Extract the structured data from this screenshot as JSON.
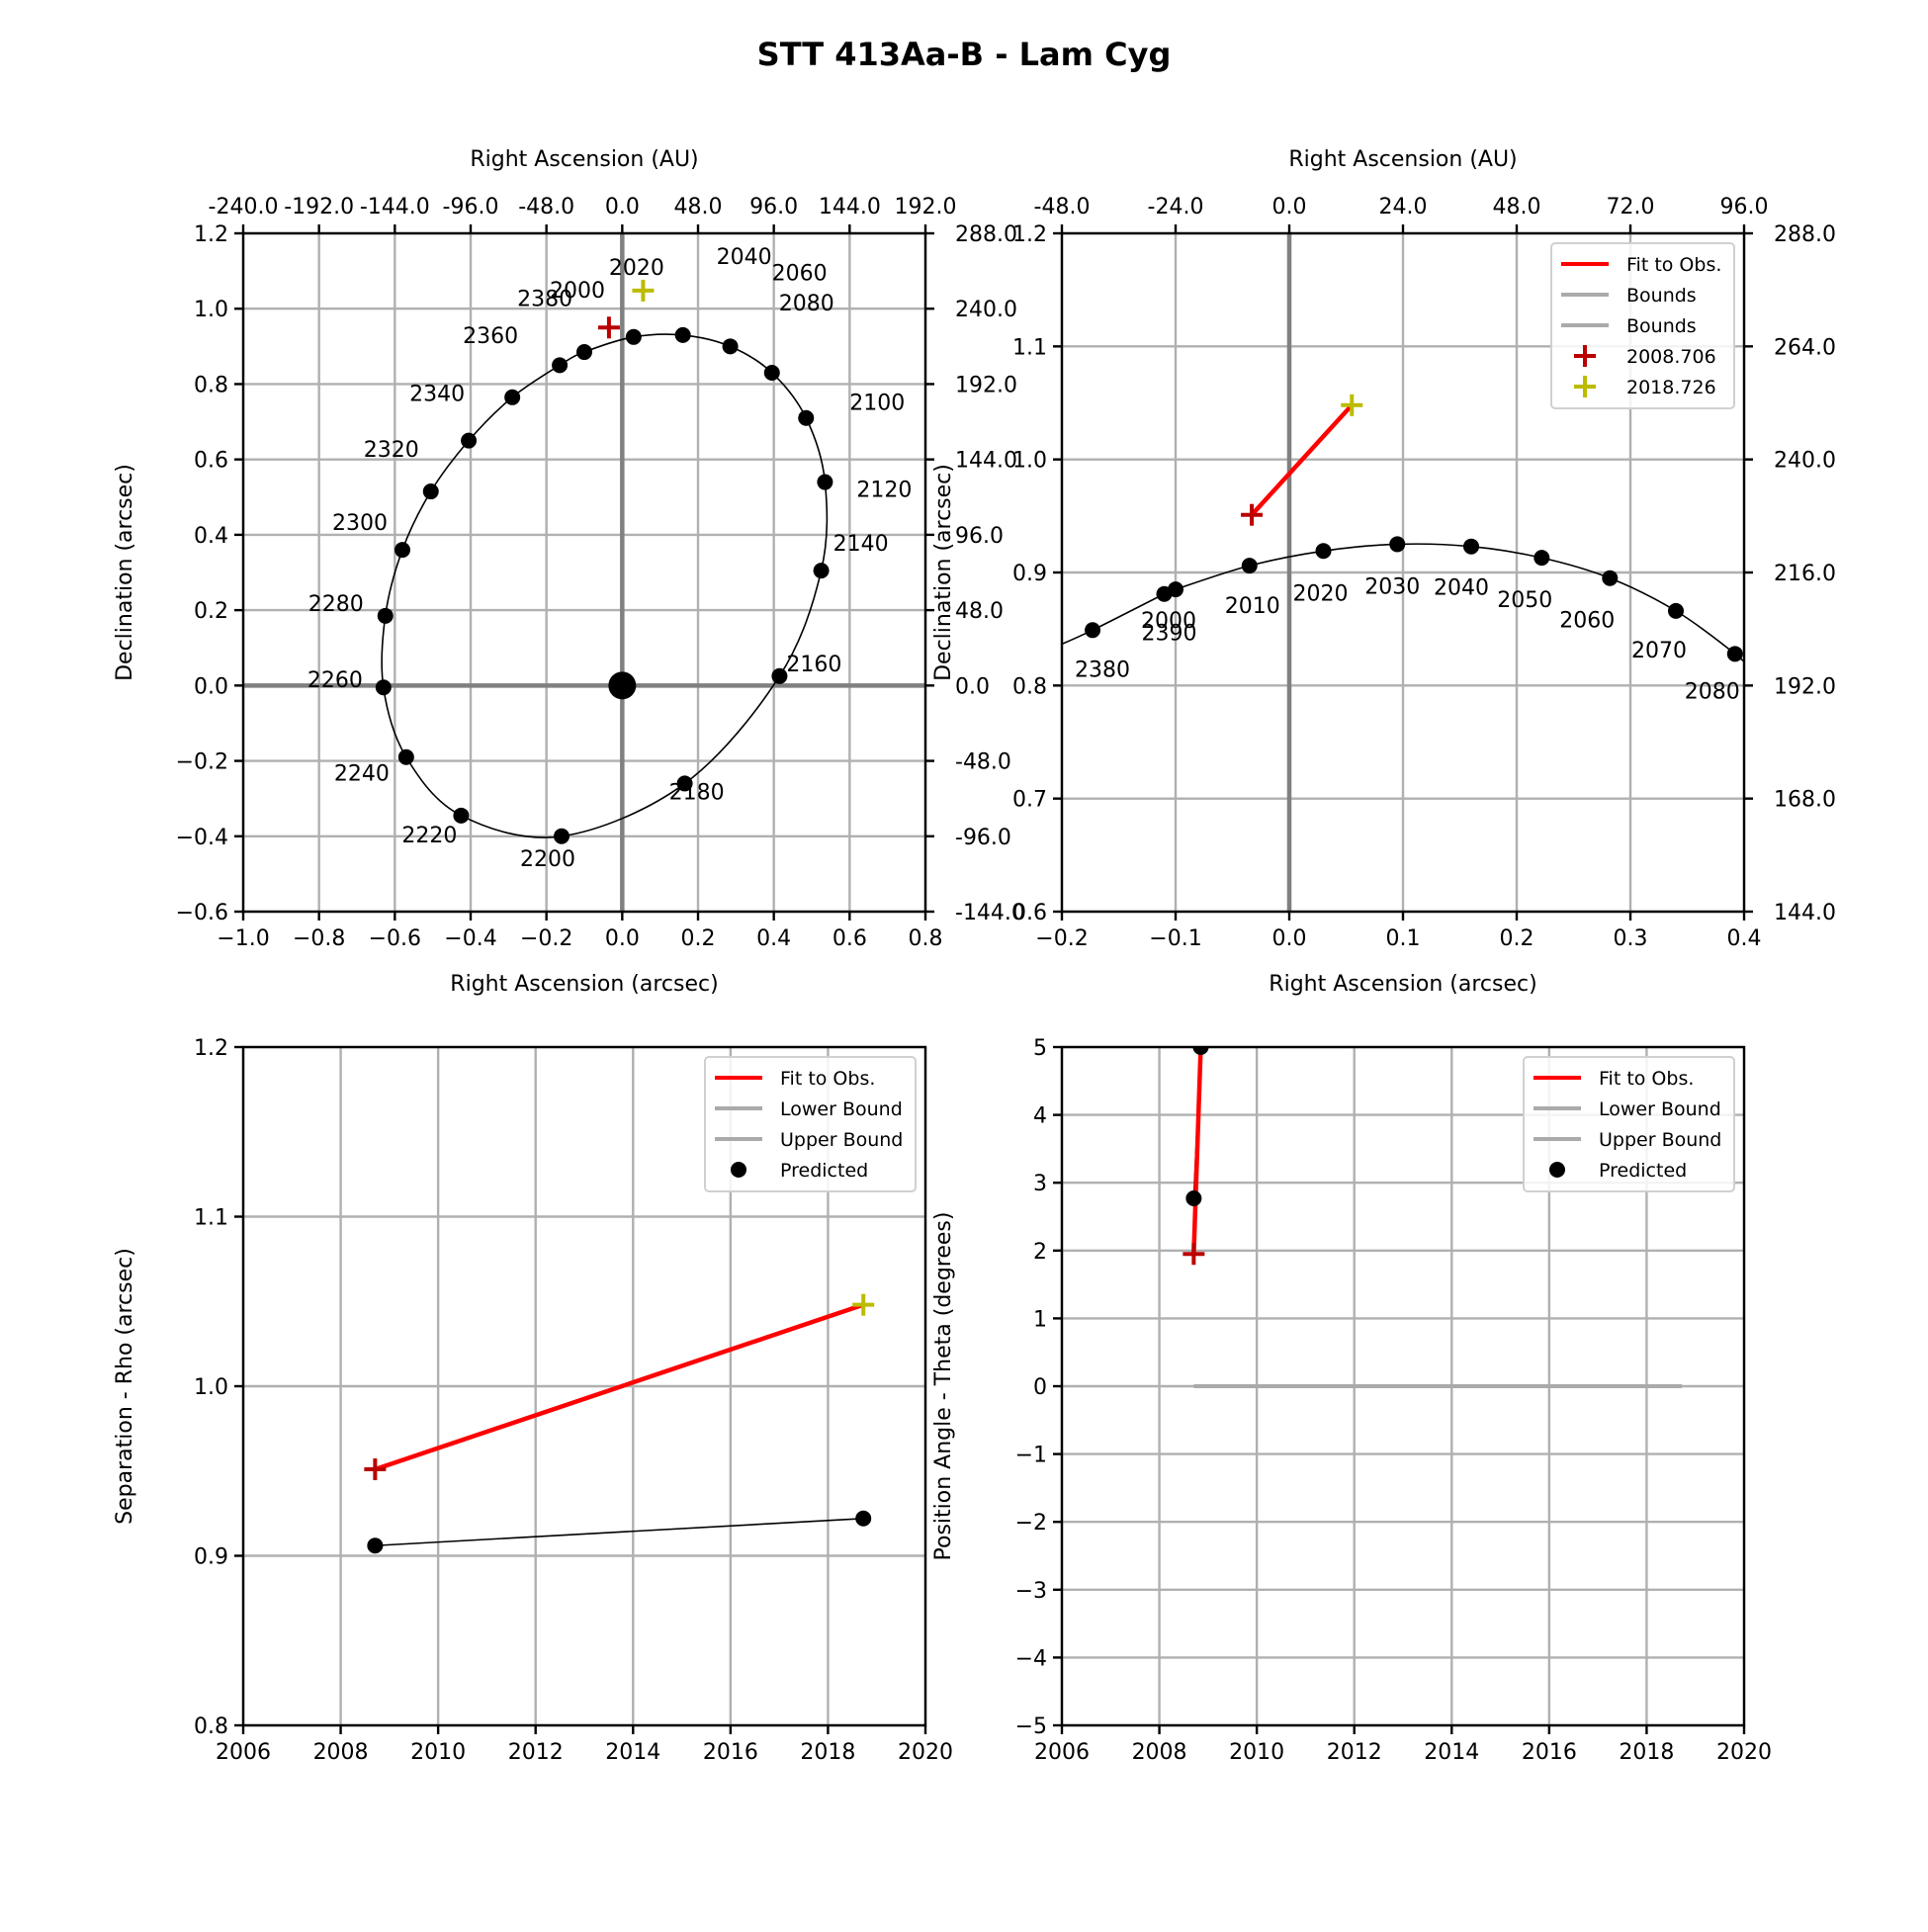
{
  "title": "STT 413Aa-B - Lam Cyg",
  "colors": {
    "fit": "#ff0000",
    "bound": "#aaaaaa",
    "obs1": "#bb0000",
    "obs2": "#bbbb00",
    "predicted": "#000000",
    "grid": "#b0b0b0",
    "axis_zero": "#808080"
  },
  "chart_data": [
    {
      "id": "orbit_full",
      "type": "scatter",
      "xlabel": "Right Ascension (arcsec)",
      "ylabel": "Declination (arcsec)",
      "top_xlabel": "Right Ascension (AU)",
      "xlim": [
        -1.0,
        0.8
      ],
      "ylim": [
        -0.6,
        1.2
      ],
      "xticks": [
        "−1.0",
        "−0.8",
        "−0.6",
        "−0.4",
        "−0.2",
        "0.0",
        "0.2",
        "0.4",
        "0.6",
        "0.8"
      ],
      "yticks": [
        "−0.6",
        "−0.4",
        "−0.2",
        "0.0",
        "0.2",
        "0.4",
        "0.6",
        "0.8",
        "1.0",
        "1.2"
      ],
      "top_ticks": [
        "-240.0",
        "-192.0",
        "-144.0",
        "-96.0",
        "-48.0",
        "0.0",
        "48.0",
        "96.0",
        "144.0",
        "192.0"
      ],
      "right_ticks": [
        "-144.0",
        "-96.0",
        "-48.0",
        "0.0",
        "48.0",
        "96.0",
        "144.0",
        "192.0",
        "240.0",
        "288.0"
      ],
      "grid": true,
      "primary_star": [
        0,
        0
      ],
      "predicted": [
        {
          "label": "2020",
          "x": 0.03,
          "y": 0.925
        },
        {
          "label": "2040",
          "x": 0.16,
          "y": 0.93
        },
        {
          "label": "2060",
          "x": 0.285,
          "y": 0.9
        },
        {
          "label": "2080",
          "x": 0.395,
          "y": 0.83
        },
        {
          "label": "2100",
          "x": 0.485,
          "y": 0.71
        },
        {
          "label": "2120",
          "x": 0.535,
          "y": 0.54
        },
        {
          "label": "2140",
          "x": 0.525,
          "y": 0.305
        },
        {
          "label": "2160",
          "x": 0.415,
          "y": 0.025
        },
        {
          "label": "2180",
          "x": 0.165,
          "y": -0.26
        },
        {
          "label": "2200",
          "x": -0.16,
          "y": -0.4
        },
        {
          "label": "2220",
          "x": -0.425,
          "y": -0.345
        },
        {
          "label": "2240",
          "x": -0.57,
          "y": -0.19
        },
        {
          "label": "2260",
          "x": -0.63,
          "y": -0.005
        },
        {
          "label": "2280",
          "x": -0.625,
          "y": 0.185
        },
        {
          "label": "2300",
          "x": -0.58,
          "y": 0.36
        },
        {
          "label": "2320",
          "x": -0.505,
          "y": 0.515
        },
        {
          "label": "2340",
          "x": -0.405,
          "y": 0.65
        },
        {
          "label": "2360",
          "x": -0.29,
          "y": 0.765
        },
        {
          "label": "2380",
          "x": -0.165,
          "y": 0.85
        },
        {
          "label": "2000",
          "x": -0.1,
          "y": 0.885
        }
      ],
      "observations": [
        {
          "x": -0.035,
          "y": 0.95,
          "color": "#bb0000"
        },
        {
          "x": 0.055,
          "y": 1.048,
          "color": "#bbbb00"
        }
      ]
    },
    {
      "id": "orbit_zoom",
      "type": "scatter",
      "xlabel": "Right Ascension (arcsec)",
      "ylabel": "Declination (arcsec)",
      "top_xlabel": "Right Ascension (AU)",
      "xlim": [
        -0.2,
        0.4
      ],
      "ylim": [
        0.6,
        1.2
      ],
      "xticks": [
        "−0.2",
        "−0.1",
        "0.0",
        "0.1",
        "0.2",
        "0.3",
        "0.4"
      ],
      "yticks": [
        "0.6",
        "0.7",
        "0.8",
        "0.9",
        "1.0",
        "1.1",
        "1.2"
      ],
      "top_ticks": [
        "-48.0",
        "-24.0",
        "0.0",
        "24.0",
        "48.0",
        "72.0",
        "96.0"
      ],
      "right_ticks": [
        "144.0",
        "168.0",
        "192.0",
        "216.0",
        "240.0",
        "264.0",
        "288.0"
      ],
      "grid": true,
      "legend": {
        "position": "upper right",
        "entries": [
          "Fit to Obs.",
          "Bounds",
          "Bounds",
          "2008.706",
          "2018.726"
        ]
      },
      "predicted": [
        {
          "label": "2380",
          "x": -0.173,
          "y": 0.849
        },
        {
          "label": "2390",
          "x": -0.11,
          "y": 0.881
        },
        {
          "label": "2000",
          "x": -0.1,
          "y": 0.885
        },
        {
          "label": "2010",
          "x": -0.035,
          "y": 0.906
        },
        {
          "label": "2020",
          "x": 0.03,
          "y": 0.919
        },
        {
          "label": "2030",
          "x": 0.095,
          "y": 0.925
        },
        {
          "label": "2040",
          "x": 0.16,
          "y": 0.923
        },
        {
          "label": "2050",
          "x": 0.222,
          "y": 0.913
        },
        {
          "label": "2060",
          "x": 0.282,
          "y": 0.895
        },
        {
          "label": "2070",
          "x": 0.34,
          "y": 0.866
        },
        {
          "label": "2080",
          "x": 0.392,
          "y": 0.828
        }
      ],
      "fit_line": [
        {
          "x": -0.033,
          "y": 0.951
        },
        {
          "x": 0.055,
          "y": 1.048
        }
      ],
      "observations": [
        {
          "x": -0.033,
          "y": 0.951,
          "color": "#bb0000"
        },
        {
          "x": 0.055,
          "y": 1.048,
          "color": "#bbbb00"
        }
      ]
    },
    {
      "id": "separation",
      "type": "line",
      "ylabel": "Separation - Rho (arcsec)",
      "xlim": [
        2006,
        2020
      ],
      "ylim": [
        0.8,
        1.2
      ],
      "xticks": [
        "2006",
        "2008",
        "2010",
        "2012",
        "2014",
        "2016",
        "2018",
        "2020"
      ],
      "yticks": [
        "0.8",
        "0.9",
        "1.0",
        "1.1",
        "1.2"
      ],
      "grid": true,
      "legend": {
        "position": "upper right",
        "entries": [
          "Fit to Obs.",
          "Lower Bound",
          "Upper Bound",
          "Predicted"
        ]
      },
      "fit_line": [
        {
          "x": 2008.706,
          "y": 0.951
        },
        {
          "x": 2018.726,
          "y": 1.048
        }
      ],
      "predicted": [
        {
          "x": 2008.706,
          "y": 0.906
        },
        {
          "x": 2018.726,
          "y": 0.922
        }
      ],
      "observations": [
        {
          "x": 2008.706,
          "y": 0.951,
          "color": "#bb0000"
        },
        {
          "x": 2018.726,
          "y": 1.048,
          "color": "#bbbb00"
        }
      ]
    },
    {
      "id": "position_angle",
      "type": "line",
      "ylabel": "Position Angle - Theta (degrees)",
      "xlim": [
        2006,
        2020
      ],
      "ylim": [
        -5,
        5
      ],
      "xticks": [
        "2006",
        "2008",
        "2010",
        "2012",
        "2014",
        "2016",
        "2018",
        "2020"
      ],
      "yticks": [
        "−5",
        "−4",
        "−3",
        "−2",
        "−1",
        "0",
        "1",
        "2",
        "3",
        "4",
        "5"
      ],
      "grid": true,
      "legend": {
        "position": "upper right",
        "entries": [
          "Fit to Obs.",
          "Lower Bound",
          "Upper Bound",
          "Predicted"
        ]
      },
      "fit_line": [
        {
          "x": 2008.706,
          "y": 1.95
        },
        {
          "x": 2008.85,
          "y": 5.0
        }
      ],
      "bound_line": [
        {
          "x": 2008.706,
          "y": 0
        },
        {
          "x": 2018.726,
          "y": 0
        }
      ],
      "predicted": [
        {
          "x": 2008.706,
          "y": 2.77
        },
        {
          "x": 2008.85,
          "y": 5.0
        }
      ],
      "observations": [
        {
          "x": 2008.706,
          "y": 1.95,
          "color": "#bb0000"
        }
      ]
    }
  ]
}
